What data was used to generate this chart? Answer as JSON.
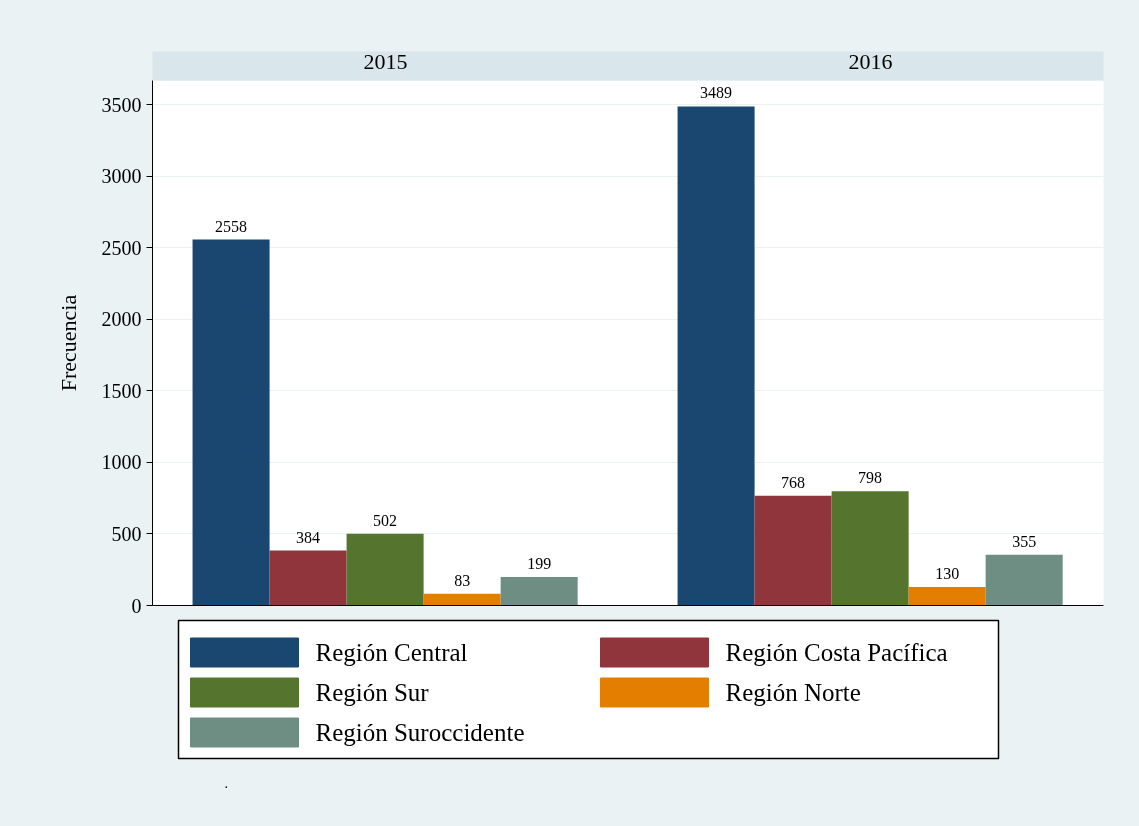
{
  "chart_data": {
    "type": "bar",
    "ylabel": "Frecuencia",
    "categories": [
      "2015",
      "2016"
    ],
    "ylim": [
      0,
      3670
    ],
    "yticks": [
      0,
      500,
      1000,
      1500,
      2000,
      2500,
      3000,
      3500
    ],
    "grid": "y",
    "legend": "bottom",
    "data_labels": true,
    "annotations": [
      "."
    ],
    "series": [
      {
        "name": "Región Central",
        "color": "#1a476f",
        "values": [
          2558,
          3489
        ]
      },
      {
        "name": "Región Costa Pacífica",
        "color": "#90353b",
        "values": [
          384,
          768
        ]
      },
      {
        "name": "Región Sur",
        "color": "#55752f",
        "values": [
          502,
          798
        ]
      },
      {
        "name": "Región Norte",
        "color": "#e37e00",
        "values": [
          83,
          130
        ]
      },
      {
        "name": "Región Suroccidente",
        "color": "#6e8e84",
        "values": [
          199,
          355
        ]
      }
    ]
  }
}
